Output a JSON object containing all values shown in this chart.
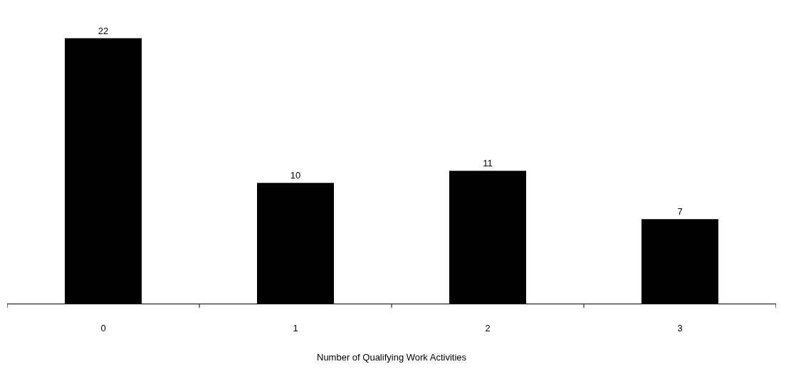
{
  "chart_data": {
    "type": "bar",
    "xlabel": "Number of Qualifying Work Activities",
    "categories": [
      "0",
      "1",
      "2",
      "3"
    ],
    "values": [
      22,
      10,
      11,
      7
    ],
    "color": "#000000",
    "data_labels": true
  }
}
